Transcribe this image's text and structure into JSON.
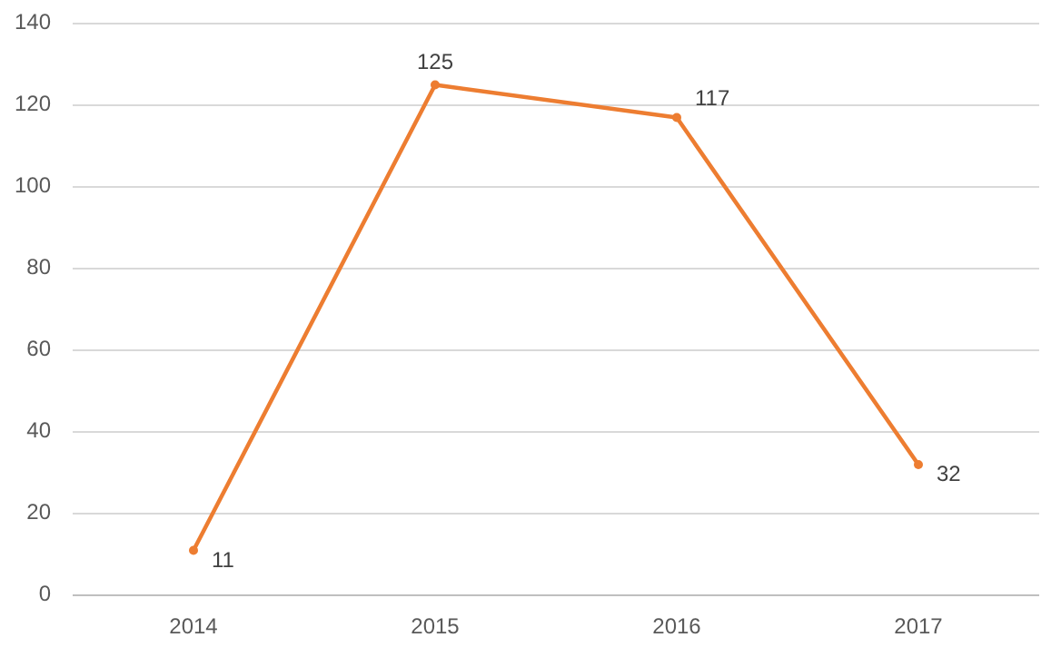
{
  "chart_data": {
    "type": "line",
    "categories": [
      "2014",
      "2015",
      "2016",
      "2017"
    ],
    "series": [
      {
        "color": "#ed7d31",
        "values": [
          11,
          125,
          117,
          32
        ]
      }
    ],
    "ylim": [
      0,
      140
    ],
    "yticks": [
      0,
      20,
      40,
      60,
      80,
      100,
      120,
      140
    ],
    "grid": "y",
    "marker": "circle",
    "data_labels": true
  }
}
